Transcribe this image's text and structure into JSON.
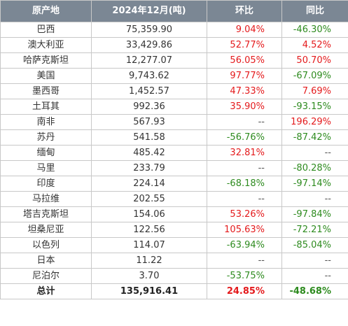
{
  "headers": [
    "原产地",
    "2024年12月(吨)",
    "环比",
    "同比"
  ],
  "rows": [
    {
      "origin": "巴西",
      "volume": "75,359.90",
      "mom": "9.04%",
      "yoy": "-46.30%"
    },
    {
      "origin": "澳大利亚",
      "volume": "33,429.86",
      "mom": "52.77%",
      "yoy": "4.52%"
    },
    {
      "origin": "哈萨克斯坦",
      "volume": "12,277.07",
      "mom": "56.05%",
      "yoy": "50.70%"
    },
    {
      "origin": "美国",
      "volume": "9,743.62",
      "mom": "97.77%",
      "yoy": "-67.09%"
    },
    {
      "origin": "墨西哥",
      "volume": "1,452.57",
      "mom": "47.33%",
      "yoy": "7.69%"
    },
    {
      "origin": "土耳其",
      "volume": "992.36",
      "mom": "35.90%",
      "yoy": "-93.15%"
    },
    {
      "origin": "南非",
      "volume": "567.93",
      "mom": "--",
      "yoy": "196.29%"
    },
    {
      "origin": "苏丹",
      "volume": "541.58",
      "mom": "-56.76%",
      "yoy": "-87.42%"
    },
    {
      "origin": "缅甸",
      "volume": "485.42",
      "mom": "32.81%",
      "yoy": "--"
    },
    {
      "origin": "马里",
      "volume": "233.79",
      "mom": "--",
      "yoy": "-80.28%"
    },
    {
      "origin": "印度",
      "volume": "224.14",
      "mom": "-68.18%",
      "yoy": "-97.14%"
    },
    {
      "origin": "马拉维",
      "volume": "202.55",
      "mom": "--",
      "yoy": "--"
    },
    {
      "origin": "塔吉克斯坦",
      "volume": "154.06",
      "mom": "53.26%",
      "yoy": "-97.84%"
    },
    {
      "origin": "坦桑尼亚",
      "volume": "122.56",
      "mom": "105.63%",
      "yoy": "-72.21%"
    },
    {
      "origin": "以色列",
      "volume": "114.07",
      "mom": "-63.94%",
      "yoy": "-85.04%"
    },
    {
      "origin": "日本",
      "volume": "11.22",
      "mom": "--",
      "yoy": "--"
    },
    {
      "origin": "尼泊尔",
      "volume": "3.70",
      "mom": "-53.75%",
      "yoy": "--"
    }
  ],
  "total": {
    "origin": "总计",
    "volume": "135,916.41",
    "mom": "24.85%",
    "yoy": "-48.68%"
  },
  "colors": {
    "header_bg": "#7b8794",
    "positive": "#e41a1c",
    "negative": "#2e8b1f"
  }
}
